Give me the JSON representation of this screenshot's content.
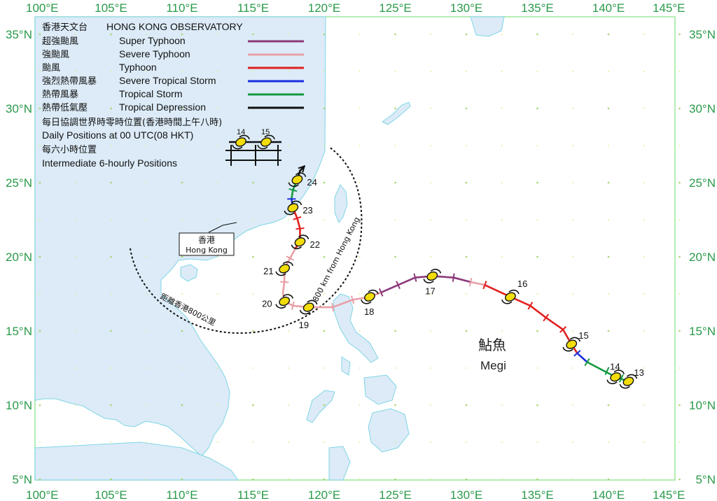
{
  "header": {
    "org_cn": "香港天文台",
    "org_en": "HONG KONG OBSERVATORY"
  },
  "legend": {
    "items": [
      {
        "cn": "超強颱風",
        "en": "Super Typhoon",
        "color": "#8b3a7a"
      },
      {
        "cn": "強颱風",
        "en": "Severe Typhoon",
        "color": "#e8a0a8"
      },
      {
        "cn": "颱風",
        "en": "Typhoon",
        "color": "#e02020"
      },
      {
        "cn": "強烈熱帶風暴",
        "en": "Severe Tropical Storm",
        "color": "#1a2ee0"
      },
      {
        "cn": "熱帶風暴",
        "en": "Tropical Storm",
        "color": "#139a40"
      },
      {
        "cn": "熱帶低氣壓",
        "en": "Tropical Depression",
        "color": "#111111"
      }
    ],
    "daily_cn": "每日協調世界時零時位置(香港時間上午八時)",
    "daily_en": "Daily Positions at 00 UTC(08 HKT)",
    "daily_sample": [
      "14",
      "15"
    ],
    "six_hourly_cn": "每六小時位置",
    "six_hourly_en": "Intermediate 6-hourly Positions"
  },
  "axes": {
    "lon_labels": [
      "100°E",
      "105°E",
      "110°E",
      "115°E",
      "120°E",
      "125°E",
      "130°E",
      "135°E",
      "140°E",
      "145°E"
    ],
    "lat_labels": [
      "35°N",
      "30°N",
      "25°N",
      "20°N",
      "15°N",
      "10°N",
      "5°N"
    ],
    "lon_range": [
      100,
      145
    ],
    "lat_range": [
      5,
      35
    ],
    "color": "#2a9a4a"
  },
  "hong_kong": {
    "cn": "香港",
    "en": "Hong Kong",
    "lon": 114.17,
    "lat": 22.3
  },
  "ring": {
    "en": "800 km from Hong Kong",
    "cn": "距離香港800公里"
  },
  "storm": {
    "name_cn": "鮎魚",
    "name_en": "Megi"
  },
  "track": [
    {
      "lon": 141.4,
      "lat": 11.6,
      "intensity": "Tropical Depression"
    },
    {
      "lon": 140.5,
      "lat": 11.9,
      "intensity": "Tropical Storm"
    },
    {
      "lon": 138.5,
      "lat": 12.9,
      "intensity": "Tropical Storm"
    },
    {
      "lon": 137.8,
      "lat": 13.5,
      "intensity": "Severe Tropical Storm"
    },
    {
      "lon": 137.4,
      "lat": 14.1,
      "intensity": "Typhoon"
    },
    {
      "lon": 136.8,
      "lat": 15.1,
      "intensity": "Typhoon"
    },
    {
      "lon": 135.6,
      "lat": 15.9,
      "intensity": "Typhoon"
    },
    {
      "lon": 134.5,
      "lat": 16.7,
      "intensity": "Typhoon"
    },
    {
      "lon": 133.1,
      "lat": 17.3,
      "intensity": "Typhoon"
    },
    {
      "lon": 131.3,
      "lat": 18.1,
      "intensity": "Typhoon"
    },
    {
      "lon": 130.3,
      "lat": 18.3,
      "intensity": "Severe Typhoon"
    },
    {
      "lon": 129.1,
      "lat": 18.6,
      "intensity": "Super Typhoon"
    },
    {
      "lon": 127.6,
      "lat": 18.7,
      "intensity": "Super Typhoon"
    },
    {
      "lon": 126.4,
      "lat": 18.6,
      "intensity": "Super Typhoon"
    },
    {
      "lon": 125.2,
      "lat": 18.1,
      "intensity": "Super Typhoon"
    },
    {
      "lon": 124.0,
      "lat": 17.6,
      "intensity": "Super Typhoon"
    },
    {
      "lon": 123.2,
      "lat": 17.3,
      "intensity": "Severe Typhoon"
    },
    {
      "lon": 122.0,
      "lat": 17.1,
      "intensity": "Severe Typhoon"
    },
    {
      "lon": 120.6,
      "lat": 16.6,
      "intensity": "Severe Typhoon"
    },
    {
      "lon": 118.9,
      "lat": 16.6,
      "intensity": "Severe Typhoon"
    },
    {
      "lon": 117.8,
      "lat": 16.7,
      "intensity": "Severe Typhoon"
    },
    {
      "lon": 117.2,
      "lat": 17.0,
      "intensity": "Severe Typhoon"
    },
    {
      "lon": 117.1,
      "lat": 17.6,
      "intensity": "Severe Typhoon"
    },
    {
      "lon": 117.2,
      "lat": 18.3,
      "intensity": "Severe Typhoon"
    },
    {
      "lon": 117.2,
      "lat": 19.2,
      "intensity": "Severe Typhoon"
    },
    {
      "lon": 117.6,
      "lat": 19.9,
      "intensity": "Severe Typhoon"
    },
    {
      "lon": 118.0,
      "lat": 20.6,
      "intensity": "Severe Typhoon"
    },
    {
      "lon": 118.3,
      "lat": 21.0,
      "intensity": "Typhoon"
    },
    {
      "lon": 118.3,
      "lat": 21.9,
      "intensity": "Typhoon"
    },
    {
      "lon": 118.1,
      "lat": 22.6,
      "intensity": "Typhoon"
    },
    {
      "lon": 117.8,
      "lat": 23.3,
      "intensity": "Typhoon"
    },
    {
      "lon": 117.7,
      "lat": 23.9,
      "intensity": "Severe Tropical Storm"
    },
    {
      "lon": 117.8,
      "lat": 24.5,
      "intensity": "Tropical Storm"
    },
    {
      "lon": 118.1,
      "lat": 25.2,
      "intensity": "Tropical Storm"
    },
    {
      "lon": 118.3,
      "lat": 25.8,
      "intensity": "Tropical Depression"
    },
    {
      "lon": 118.6,
      "lat": 26.1,
      "intensity": "Tropical Depression"
    }
  ],
  "six_hourly": [
    {
      "lon": 140.9,
      "lat": 11.8
    },
    {
      "lon": 139.9,
      "lat": 12.3
    },
    {
      "lon": 138.5,
      "lat": 12.9
    },
    {
      "lon": 137.8,
      "lat": 13.5
    },
    {
      "lon": 136.8,
      "lat": 15.1
    },
    {
      "lon": 135.6,
      "lat": 15.9
    },
    {
      "lon": 134.5,
      "lat": 16.7
    },
    {
      "lon": 131.3,
      "lat": 18.1
    },
    {
      "lon": 130.3,
      "lat": 18.3
    },
    {
      "lon": 129.1,
      "lat": 18.6
    },
    {
      "lon": 126.4,
      "lat": 18.6
    },
    {
      "lon": 125.2,
      "lat": 18.1
    },
    {
      "lon": 124.0,
      "lat": 17.6
    },
    {
      "lon": 122.0,
      "lat": 17.1
    },
    {
      "lon": 120.6,
      "lat": 16.6
    },
    {
      "lon": 117.8,
      "lat": 16.7
    },
    {
      "lon": 117.2,
      "lat": 18.3
    },
    {
      "lon": 117.2,
      "lat": 19.2
    },
    {
      "lon": 117.6,
      "lat": 19.9
    },
    {
      "lon": 118.3,
      "lat": 21.9
    },
    {
      "lon": 118.1,
      "lat": 22.6
    },
    {
      "lon": 117.7,
      "lat": 23.9
    },
    {
      "lon": 117.8,
      "lat": 24.5
    }
  ],
  "daily_positions": [
    {
      "day": "13",
      "lon": 141.4,
      "lat": 11.6
    },
    {
      "day": "14",
      "lon": 140.5,
      "lat": 11.9
    },
    {
      "day": "15",
      "lon": 137.4,
      "lat": 14.1
    },
    {
      "day": "16",
      "lon": 133.1,
      "lat": 17.3
    },
    {
      "day": "17",
      "lon": 127.6,
      "lat": 18.7
    },
    {
      "day": "18",
      "lon": 123.2,
      "lat": 17.3
    },
    {
      "day": "19",
      "lon": 118.9,
      "lat": 16.6
    },
    {
      "day": "20",
      "lon": 117.2,
      "lat": 17.0
    },
    {
      "day": "21",
      "lon": 117.2,
      "lat": 19.2
    },
    {
      "day": "22",
      "lon": 118.3,
      "lat": 21.0
    },
    {
      "day": "23",
      "lon": 117.8,
      "lat": 23.3
    },
    {
      "day": "24",
      "lon": 118.1,
      "lat": 25.2
    }
  ]
}
